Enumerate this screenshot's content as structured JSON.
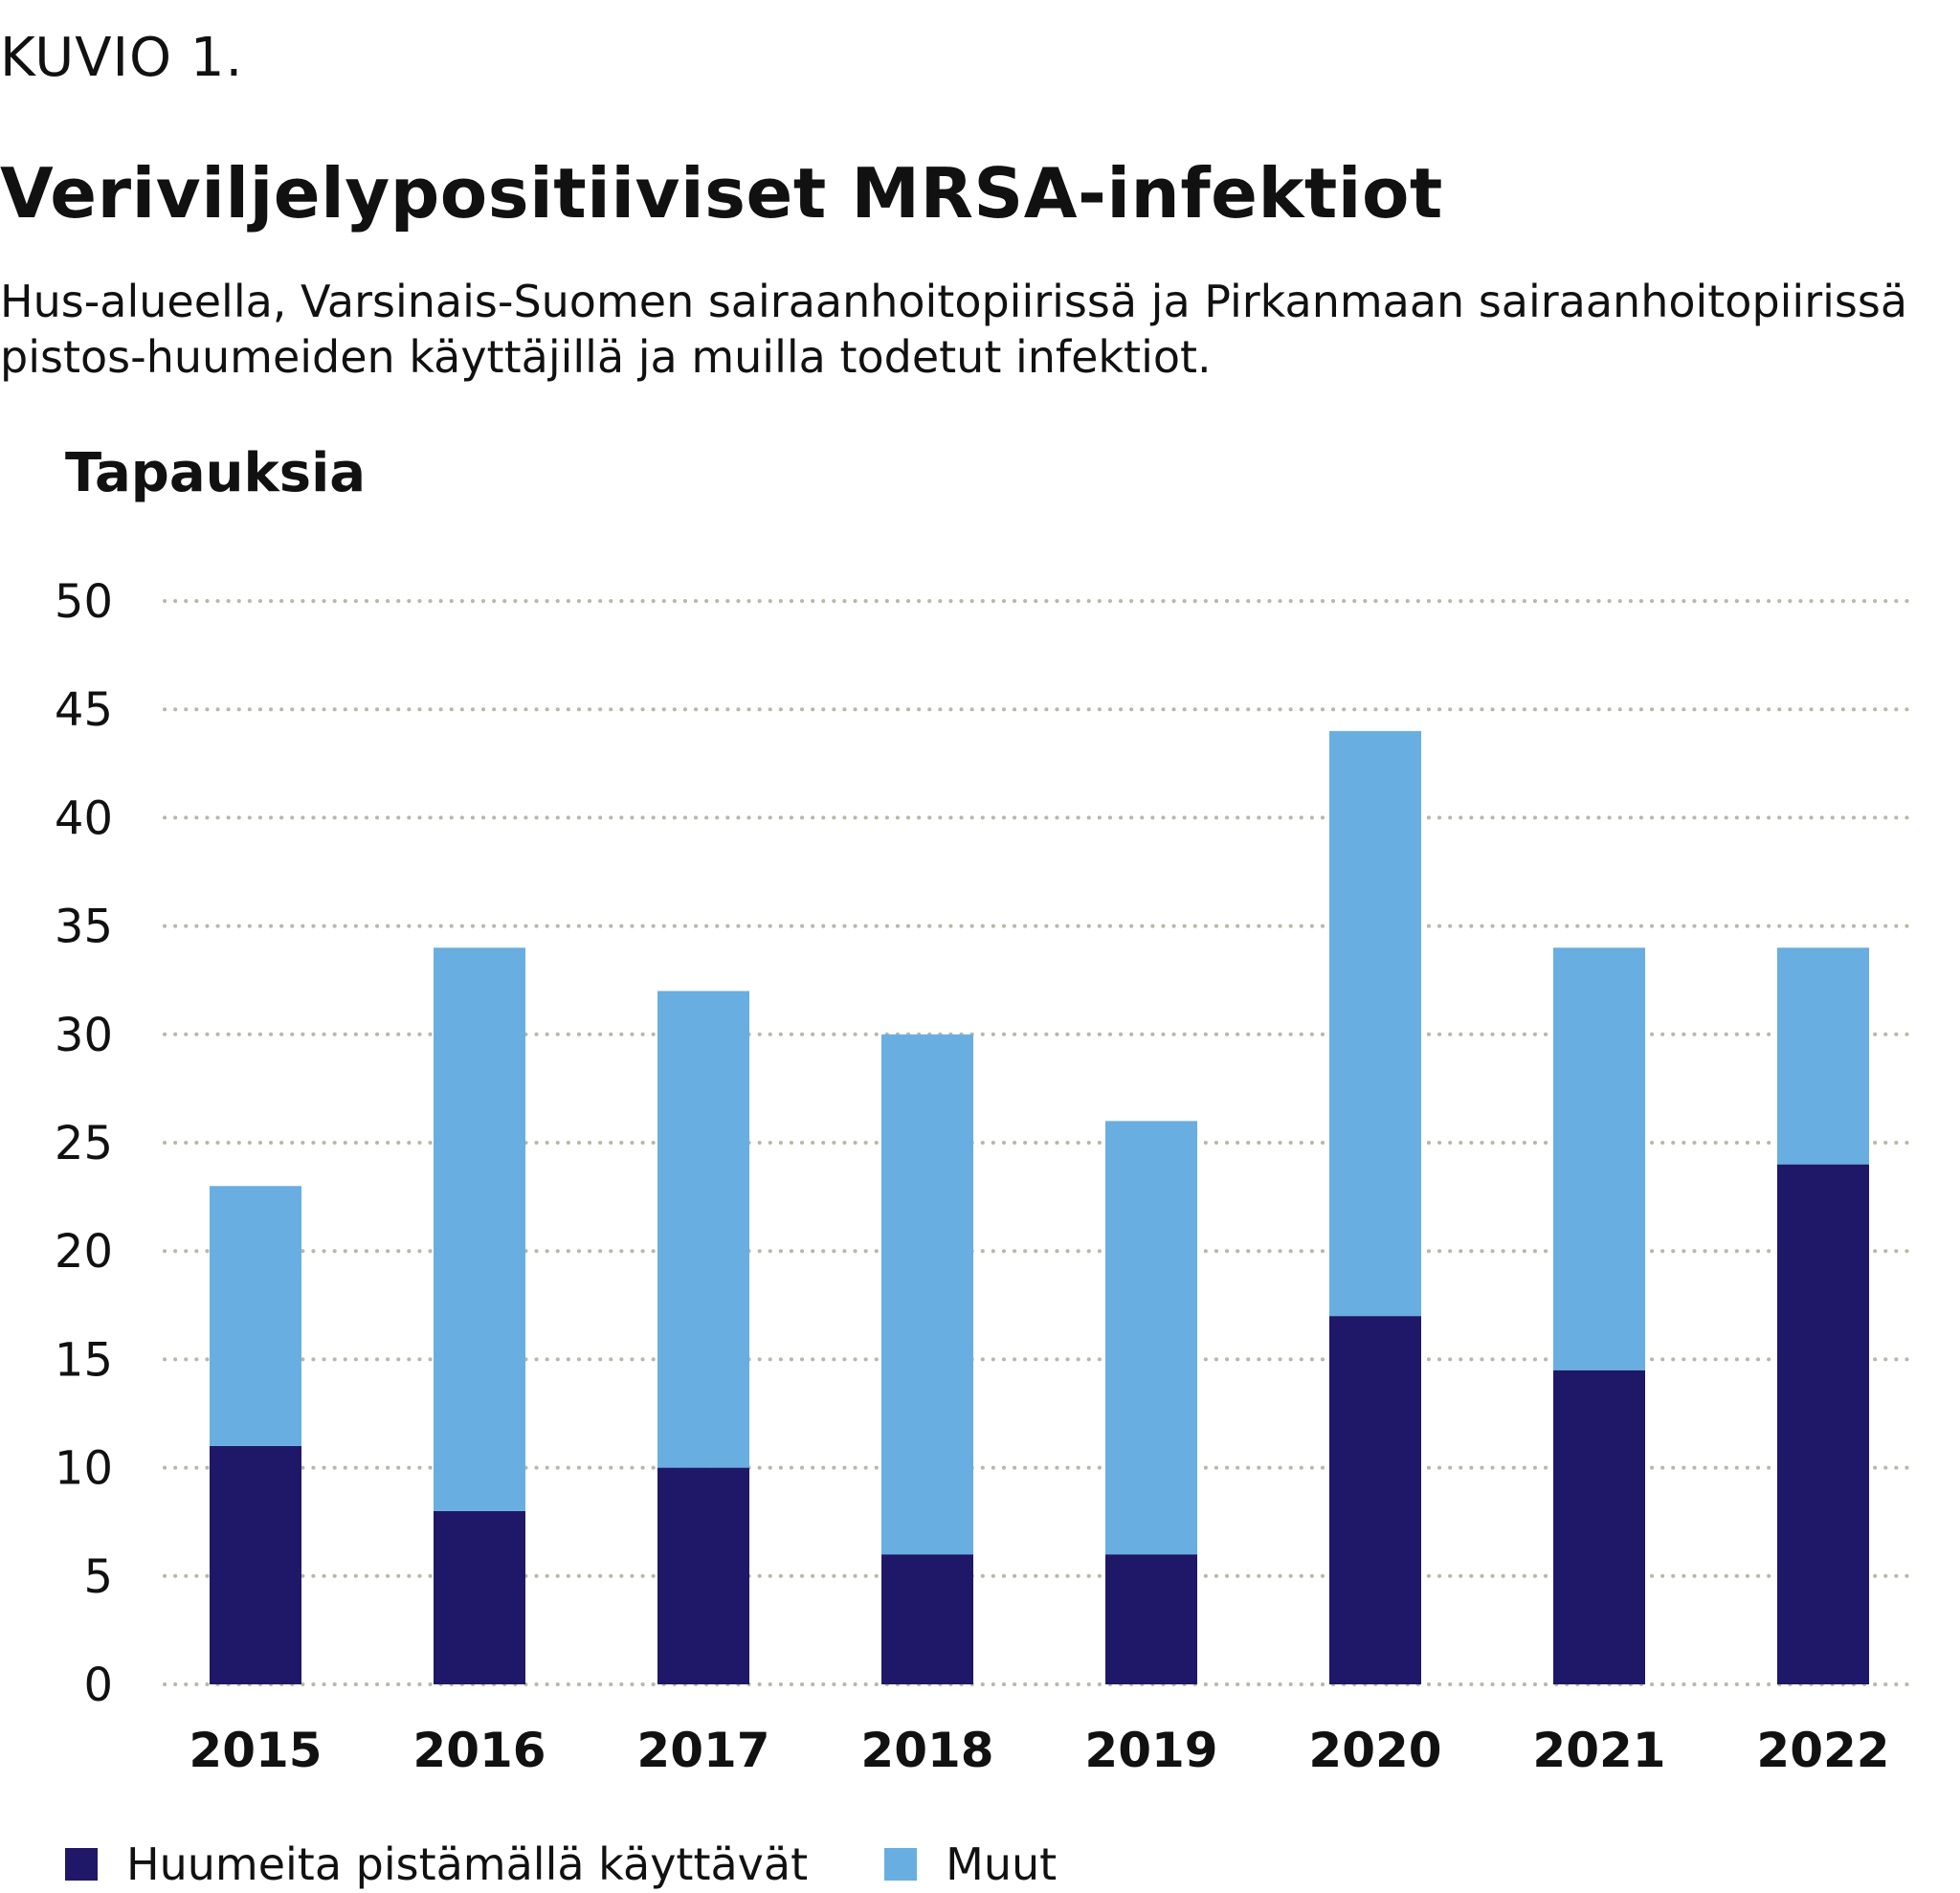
{
  "header": {
    "kicker": "KUVIO 1.",
    "title": "Veriviljelypositiiviset MRSA-infektiot",
    "subtitle": "Hus-alueella, Varsinais-Suomen sairaanhoitopiirissä ja Pirkanmaan sairaanhoitopiirissä pistos-huumeiden käyttäjillä ja muilla todetut infektiot."
  },
  "colors": {
    "series_injecting": "#1f1868",
    "series_other": "#69aee0",
    "grid": "#b9b7a6"
  },
  "chart_data": {
    "type": "bar",
    "stacked": true,
    "title": "Veriviljelypositiiviset MRSA-infektiot",
    "xlabel": "",
    "ylabel": "Tapauksia",
    "ylim": [
      0,
      50
    ],
    "yticks": [
      0,
      5,
      10,
      15,
      20,
      25,
      30,
      35,
      40,
      45,
      50
    ],
    "grid": true,
    "legend_position": "bottom-left",
    "categories": [
      "2015",
      "2016",
      "2017",
      "2018",
      "2019",
      "2020",
      "2021",
      "2022"
    ],
    "series": [
      {
        "name": "Huumeita pistämällä käyttävät",
        "color": "#1f1868",
        "values": [
          11,
          8,
          10,
          6,
          6,
          17,
          14.5,
          24
        ]
      },
      {
        "name": "Muut",
        "color": "#69aee0",
        "values": [
          12,
          26,
          22,
          24,
          20,
          27,
          19.5,
          10
        ]
      }
    ]
  }
}
